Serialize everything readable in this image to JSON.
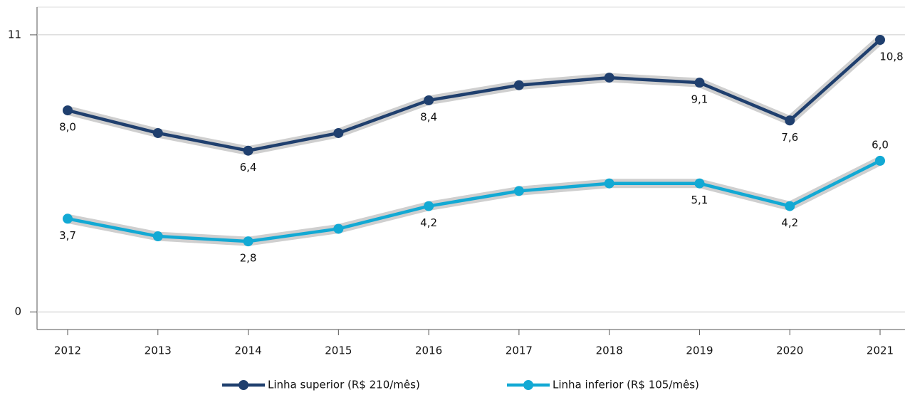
{
  "chart_data": {
    "type": "line",
    "categories": [
      "2012",
      "2013",
      "2014",
      "2015",
      "2016",
      "2017",
      "2018",
      "2019",
      "2020",
      "2021"
    ],
    "series": [
      {
        "name": "Linha superior (R$ 210/mês)",
        "color": "#1f3f6e",
        "values": [
          8.0,
          7.1,
          6.4,
          7.1,
          8.4,
          9.0,
          9.3,
          9.1,
          7.6,
          10.8
        ],
        "value_labels": [
          "8,0",
          null,
          "6,4",
          null,
          "8,4",
          null,
          null,
          "9,1",
          "7,6",
          "10,8"
        ]
      },
      {
        "name": "Linha inferior (R$ 105/mês)",
        "color": "#12a9d4",
        "values": [
          3.7,
          3.0,
          2.8,
          3.3,
          4.2,
          4.8,
          5.1,
          5.1,
          4.2,
          6.0
        ],
        "value_labels": [
          "3,7",
          null,
          "2,8",
          null,
          "4,2",
          null,
          null,
          "5,1",
          "4,2",
          "6,0"
        ]
      }
    ],
    "ylim": [
      -0.7,
      12.1
    ],
    "yticks": [
      0,
      11
    ],
    "grid": true,
    "legend": "bottom"
  }
}
